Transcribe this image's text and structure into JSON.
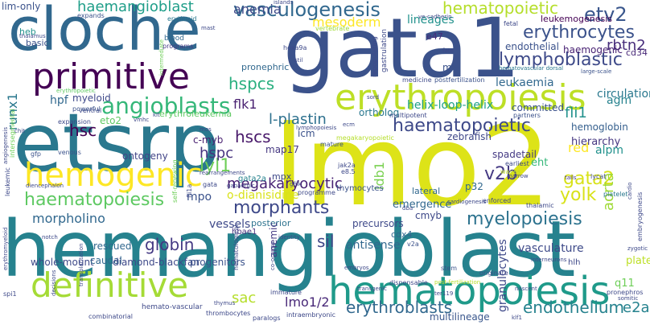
{
  "words": [
    {
      "text": "hemangioblast",
      "color": "#26828e"
    },
    {
      "text": "lmo2",
      "color": "#dde318"
    },
    {
      "text": "gata1",
      "color": "#3b528b"
    },
    {
      "text": "etsrp",
      "color": "#2a788e"
    },
    {
      "text": "cloche",
      "color": "#31688e"
    },
    {
      "text": "erythropoiesis",
      "color": "#bddf26"
    },
    {
      "text": "hematopoiesis",
      "color": "#1f9a8a"
    },
    {
      "text": "primitive",
      "color": "#440154"
    },
    {
      "text": "definitive",
      "color": "#a5db36"
    },
    {
      "text": "hemogenic",
      "color": "#fde725"
    },
    {
      "text": "angioblasts",
      "color": "#35b779"
    },
    {
      "text": "vasculogenesis",
      "color": "#31688e"
    },
    {
      "text": "haematopoietic",
      "color": "#3e4989"
    },
    {
      "text": "morphants",
      "color": "#3e4989"
    },
    {
      "text": "haematopoiesis",
      "color": "#5ec962"
    },
    {
      "text": "lymphoblastic",
      "color": "#3e4a89"
    },
    {
      "text": "erythrocytes",
      "color": "#3b528b"
    },
    {
      "text": "hematopoietic",
      "color": "#b5de2b"
    },
    {
      "text": "megakaryocytic",
      "color": "#482173"
    },
    {
      "text": "myelopoiesis",
      "color": "#2c728e"
    },
    {
      "text": "endothelium",
      "color": "#26828e"
    },
    {
      "text": "erythroblasts",
      "color": "#31688e"
    },
    {
      "text": "haemangioblast",
      "color": "#1f9e89"
    },
    {
      "text": "mesoderm",
      "color": "#fde725"
    },
    {
      "text": "hspcs",
      "color": "#29af7f"
    },
    {
      "text": "hscs",
      "color": "#48186a"
    },
    {
      "text": "hsc",
      "color": "#440154"
    },
    {
      "text": "etv2",
      "color": "#39568c"
    },
    {
      "text": "rbtn2",
      "color": "#472d7b"
    },
    {
      "text": "gata2",
      "color": "#d8e219"
    },
    {
      "text": "yolk",
      "color": "#d8e219"
    },
    {
      "text": "aorta",
      "color": "#a0da39"
    },
    {
      "text": "anemia",
      "color": "#3e4a89"
    },
    {
      "text": "leukaemia",
      "color": "#31688e"
    },
    {
      "text": "flk1",
      "color": "#481f70"
    },
    {
      "text": "lyl1",
      "color": "#6ece58"
    },
    {
      "text": "l-plastin",
      "color": "#2d708e"
    },
    {
      "text": "hspc",
      "color": "#46337e"
    },
    {
      "text": "globin",
      "color": "#443983"
    },
    {
      "text": "sil",
      "color": "#3f4788"
    },
    {
      "text": "v2b",
      "color": "#443983"
    },
    {
      "text": "sac",
      "color": "#b5de2b"
    },
    {
      "text": "lmo1/2",
      "color": "#482878"
    },
    {
      "text": "e2a",
      "color": "#26828e"
    },
    {
      "text": "fli1",
      "color": "#21918c"
    },
    {
      "text": "morpholino",
      "color": "#31688e"
    },
    {
      "text": "runx1",
      "color": "#2a788e"
    },
    {
      "text": "ldb1",
      "color": "#7ad151"
    },
    {
      "text": "helix-loop-helix",
      "color": "#1fa187"
    },
    {
      "text": "circulation",
      "color": "#2a788e"
    },
    {
      "text": "mpo",
      "color": "#3b528b"
    },
    {
      "text": "vessels",
      "color": "#3e4989"
    },
    {
      "text": "antisense",
      "color": "#31688e"
    },
    {
      "text": "vasculature",
      "color": "#3e4a89"
    },
    {
      "text": "granulocytes",
      "color": "#3e4989"
    },
    {
      "text": "multilineage",
      "color": "#39568c"
    },
    {
      "text": "leukemogenesis",
      "color": "#440154"
    },
    {
      "text": "lineages",
      "color": "#21918c"
    },
    {
      "text": "hemoglobin",
      "color": "#355f8d"
    },
    {
      "text": "hierarchy",
      "color": "#453781"
    },
    {
      "text": "endothelial",
      "color": "#3b528b"
    },
    {
      "text": "haemogenic",
      "color": "#482173"
    },
    {
      "text": "spadetail",
      "color": "#443983"
    },
    {
      "text": "zebrafish",
      "color": "#3f4788"
    },
    {
      "text": "ontogeny",
      "color": "#414487"
    },
    {
      "text": "c-myb",
      "color": "#481f70"
    },
    {
      "text": "erythroleukemia",
      "color": "#5ec962"
    },
    {
      "text": "o-dianisidine",
      "color": "#d8e219"
    },
    {
      "text": "map17",
      "color": "#453781"
    },
    {
      "text": "emergence",
      "color": "#31688e"
    },
    {
      "text": "committed",
      "color": "#3b528b"
    },
    {
      "text": "ortholog",
      "color": "#2a788e"
    },
    {
      "text": "cdx4",
      "color": "#31688e"
    },
    {
      "text": "whole-mount",
      "color": "#3e4a89"
    },
    {
      "text": "caudal",
      "color": "#31688e"
    },
    {
      "text": "diamond-blackfan",
      "color": "#3e4989"
    },
    {
      "text": "progenitors",
      "color": "#3b528b"
    },
    {
      "text": "thymocytes",
      "color": "#3b528b"
    },
    {
      "text": "rescued",
      "color": "#31688e"
    },
    {
      "text": "posterior",
      "color": "#2c728e"
    },
    {
      "text": "precursors",
      "color": "#3e4989"
    },
    {
      "text": "lateral",
      "color": "#31688e"
    },
    {
      "text": "p32",
      "color": "#31688e"
    },
    {
      "text": "eht",
      "color": "#35b779"
    },
    {
      "text": "red",
      "color": "#fde725"
    },
    {
      "text": "alpm",
      "color": "#21918c"
    },
    {
      "text": "plate",
      "color": "#bddf26"
    },
    {
      "text": "q11",
      "color": "#6ece58"
    },
    {
      "text": "hpf",
      "color": "#31688e"
    },
    {
      "text": "myeloid",
      "color": "#3e4989"
    },
    {
      "text": "eto2",
      "color": "#5ec962"
    },
    {
      "text": "gata2a",
      "color": "#26828e"
    },
    {
      "text": "mpx",
      "color": "#3e4989"
    },
    {
      "text": "icm",
      "color": "#3b528b"
    },
    {
      "text": "agm",
      "color": "#26828e"
    },
    {
      "text": "mel",
      "color": "#3b528b"
    },
    {
      "text": "e47",
      "color": "#472d7b"
    },
    {
      "text": "heb",
      "color": "#21918c"
    },
    {
      "text": "basic",
      "color": "#3b528b"
    },
    {
      "text": "pronephric",
      "color": "#31688e"
    },
    {
      "text": "cmyb",
      "color": "#3e4989"
    },
    {
      "text": "hbae1",
      "color": "#46337e"
    },
    {
      "text": "anemic",
      "color": "#443983"
    },
    {
      "text": "cd34",
      "color": "#482878"
    },
    {
      "text": "expands",
      "color": "#3b528b"
    },
    {
      "text": "blood",
      "color": "#31688e"
    },
    {
      "text": "programs",
      "color": "#443983"
    },
    {
      "text": "ventral",
      "color": "#3e4989"
    },
    {
      "text": "powerful",
      "color": "#3b528b"
    },
    {
      "text": "expansion",
      "color": "#3e4a89"
    },
    {
      "text": "vertebrate",
      "color": "#a0da39"
    },
    {
      "text": "hematovascular dorsal",
      "color": "#2a788e"
    },
    {
      "text": "large-scale",
      "color": "#3b528b"
    },
    {
      "text": "medicine",
      "color": "#3e4989"
    },
    {
      "text": "postfertilization",
      "color": "#3b528b"
    },
    {
      "text": "multipotent",
      "color": "#3e4989"
    },
    {
      "text": "partners",
      "color": "#3b528b"
    },
    {
      "text": "megakaryopoietic",
      "color": "#b5de2b"
    },
    {
      "text": "earliest",
      "color": "#3e4989"
    },
    {
      "text": "waves",
      "color": "#bddf26"
    },
    {
      "text": "tails",
      "color": "#443983"
    },
    {
      "text": "lycat",
      "color": "#3e4989"
    },
    {
      "text": "platelet",
      "color": "#2a788e"
    },
    {
      "text": "jak2a",
      "color": "#3e4989"
    },
    {
      "text": "e8.5",
      "color": "#3e4989"
    },
    {
      "text": "gfp",
      "color": "#3b528b"
    },
    {
      "text": "venous",
      "color": "#3b528b"
    },
    {
      "text": "mature",
      "color": "#3b528b"
    },
    {
      "text": "rearrangements",
      "color": "#3e4989"
    },
    {
      "text": "programme",
      "color": "#3e4989"
    },
    {
      "text": "enforced",
      "color": "#3e4989"
    },
    {
      "text": "thalamic",
      "color": "#3e4989"
    },
    {
      "text": "v2a",
      "color": "#3b528b"
    },
    {
      "text": "dba",
      "color": "#3e4989"
    },
    {
      "text": "diencephalon",
      "color": "#3e4989"
    },
    {
      "text": "notch",
      "color": "#3e4989"
    },
    {
      "text": "identity",
      "color": "#3e4989"
    },
    {
      "text": "immature",
      "color": "#3e4989"
    },
    {
      "text": "transgenic",
      "color": "#3e4989"
    },
    {
      "text": "dispensable",
      "color": "#3e4989"
    },
    {
      "text": "post-fertilization",
      "color": "#b5de2b"
    },
    {
      "text": "ter119",
      "color": "#3e4989"
    },
    {
      "text": "stem",
      "color": "#3b528b"
    },
    {
      "text": "originate",
      "color": "#3e4989"
    },
    {
      "text": "nascent",
      "color": "#3e4989"
    },
    {
      "text": "interneurons",
      "color": "#3e4989"
    },
    {
      "text": "hlh",
      "color": "#3e4989"
    },
    {
      "text": "zygotic",
      "color": "#3e4989"
    },
    {
      "text": "pronephros",
      "color": "#3e4989"
    },
    {
      "text": "somitic",
      "color": "#3e4989"
    },
    {
      "text": "klf1",
      "color": "#3e4989"
    },
    {
      "text": "paralogs",
      "color": "#3e4989"
    },
    {
      "text": "intraembryonic",
      "color": "#3e4989"
    },
    {
      "text": "hemato-vascular",
      "color": "#3e4989"
    },
    {
      "text": "combinatorial",
      "color": "#3e4989"
    },
    {
      "text": "spi1",
      "color": "#3e4989"
    },
    {
      "text": "thrombocytes",
      "color": "#3e4989"
    },
    {
      "text": "thymus",
      "color": "#3e4989"
    },
    {
      "text": "embryos",
      "color": "#3e4989"
    },
    {
      "text": "hematological",
      "color": "#3e4989"
    },
    {
      "text": "lymphopoiesis",
      "color": "#3e4989"
    },
    {
      "text": "gfilk",
      "color": "#3e4989"
    },
    {
      "text": "gabaergic",
      "color": "#3e4989"
    },
    {
      "text": "hoxa9a",
      "color": "#3e4989"
    },
    {
      "text": "stil",
      "color": "#3e4989"
    },
    {
      "text": "mast",
      "color": "#3e4989"
    },
    {
      "text": "ve-cadherin",
      "color": "#3e4989"
    },
    {
      "text": "fetal",
      "color": "#3e4989"
    },
    {
      "text": "fate",
      "color": "#3e4989"
    },
    {
      "text": "sord",
      "color": "#3e4989"
    },
    {
      "text": "ecm",
      "color": "#3e4989"
    },
    {
      "text": "marrow",
      "color": "#3e4989"
    },
    {
      "text": "cardiogenesis",
      "color": "#3e4989"
    },
    {
      "text": "erythroid",
      "color": "#2a788e"
    },
    {
      "text": "thalamus",
      "color": "#3e4989"
    },
    {
      "text": "vmhc",
      "color": "#3e4989"
    },
    {
      "text": "mos",
      "color": "#3e4989"
    },
    {
      "text": "islands",
      "color": "#3e4989"
    },
    {
      "text": "lim-only",
      "color": "#3b528b"
    },
    {
      "text": "repopulating",
      "color": "#3e4989"
    },
    {
      "text": "gastrulation",
      "color": "#3e4989"
    },
    {
      "text": "intermediate",
      "color": "#6ece58"
    },
    {
      "text": "fli1a",
      "color": "#3e4989"
    },
    {
      "text": "gata",
      "color": "#3e4989"
    },
    {
      "text": "self-renewing",
      "color": "#6ece58"
    },
    {
      "text": "leukemic",
      "color": "#3e4989"
    },
    {
      "text": "erythromyeloid",
      "color": "#3e4989"
    },
    {
      "text": "angiogenesis",
      "color": "#3e4989"
    },
    {
      "text": "intersegmental",
      "color": "#6ece58"
    },
    {
      "text": "transplantation",
      "color": "#3e4989"
    },
    {
      "text": "embryogenesis",
      "color": "#3e4989"
    },
    {
      "text": "erythropoietic",
      "color": "#5ec962"
    },
    {
      "text": "decisions",
      "color": "#3e4989"
    },
    {
      "text": "chit",
      "color": "#3e4989"
    },
    {
      "text": "kit",
      "color": "#3e4989"
    },
    {
      "text": "co-occupy",
      "color": "#3e4989"
    },
    {
      "text": "cardio",
      "color": "#3e4989"
    }
  ]
}
